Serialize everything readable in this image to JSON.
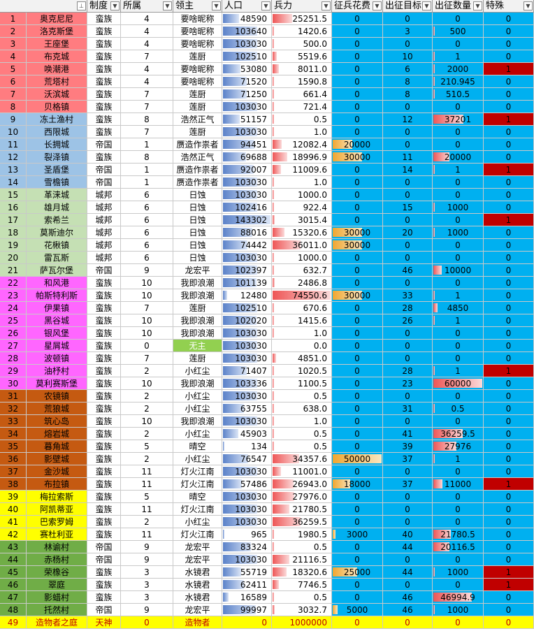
{
  "header": {
    "no": "",
    "system": "制度",
    "belong": "所属",
    "lord": "领主",
    "pop": "人口",
    "troops": "兵力",
    "recruit": "征兵花费",
    "target": "出征目标",
    "count": "出征数量",
    "special": "特殊",
    "sort_icon": "sort-filter-icon",
    "filter_icon": "dropdown-filter-icon"
  },
  "colors": {
    "group1": "#ff7c80",
    "group2": "#9dc3e6",
    "group3": "#c5e0b4",
    "group4": "#ff66ff",
    "group5": "#c55a11",
    "group6": "#ffff00",
    "group7": "#70ad47",
    "special_flag": "#c00000",
    "sky": "#00b0f0"
  },
  "max": {
    "pop": 143302,
    "troops": 74550.6,
    "recruit": 50000,
    "count": 60000
  },
  "rows": [
    {
      "no": "1",
      "name": "奥克尼尼",
      "system": "蛮族",
      "belong": "4",
      "lord": "要啥昵称",
      "pop": "48590",
      "troops": "25251.5",
      "recruit": "0",
      "target": "0",
      "count": "0",
      "special": "0"
    },
    {
      "no": "2",
      "name": "洛克斯堡",
      "system": "蛮族",
      "belong": "4",
      "lord": "要啥昵称",
      "pop": "103640",
      "troops": "1420.6",
      "recruit": "0",
      "target": "3",
      "count": "500",
      "special": "0"
    },
    {
      "no": "3",
      "name": "王座堡",
      "system": "蛮族",
      "belong": "4",
      "lord": "要啥昵称",
      "pop": "103030",
      "troops": "500.0",
      "recruit": "0",
      "target": "0",
      "count": "0",
      "special": "0"
    },
    {
      "no": "4",
      "name": "布克城",
      "system": "蛮族",
      "belong": "7",
      "lord": "莲厨",
      "pop": "102510",
      "troops": "5519.6",
      "recruit": "0",
      "target": "10",
      "count": "1",
      "special": "0"
    },
    {
      "no": "5",
      "name": "唤潮港",
      "system": "蛮族",
      "belong": "4",
      "lord": "要啥昵称",
      "pop": "53080",
      "troops": "8011.0",
      "recruit": "0",
      "target": "6",
      "count": "2000",
      "special": "1"
    },
    {
      "no": "6",
      "name": "荒塔村",
      "system": "蛮族",
      "belong": "4",
      "lord": "要啥昵称",
      "pop": "71520",
      "troops": "1590.8",
      "recruit": "0",
      "target": "8",
      "count": "210.945",
      "special": "0"
    },
    {
      "no": "7",
      "name": "沃滨城",
      "system": "蛮族",
      "belong": "7",
      "lord": "莲厨",
      "pop": "71250",
      "troops": "661.4",
      "recruit": "0",
      "target": "8",
      "count": "510.5",
      "special": "0"
    },
    {
      "no": "8",
      "name": "贝格镇",
      "system": "蛮族",
      "belong": "7",
      "lord": "莲厨",
      "pop": "103030",
      "troops": "721.4",
      "recruit": "0",
      "target": "0",
      "count": "0",
      "special": "0"
    },
    {
      "no": "9",
      "name": "冻土渔村",
      "system": "蛮族",
      "belong": "8",
      "lord": "浩然正气",
      "pop": "51157",
      "troops": "0.5",
      "recruit": "0",
      "target": "12",
      "count": "37201",
      "special": "1"
    },
    {
      "no": "10",
      "name": "西限城",
      "system": "蛮族",
      "belong": "7",
      "lord": "莲厨",
      "pop": "103030",
      "troops": "1.0",
      "recruit": "0",
      "target": "0",
      "count": "0",
      "special": "0"
    },
    {
      "no": "11",
      "name": "长拥城",
      "system": "帝国",
      "belong": "1",
      "lord": "赝造作祟者",
      "pop": "94451",
      "troops": "12082.4",
      "recruit": "20000",
      "target": "0",
      "count": "0",
      "special": "0"
    },
    {
      "no": "12",
      "name": "裂泽镇",
      "system": "蛮族",
      "belong": "8",
      "lord": "浩然正气",
      "pop": "69688",
      "troops": "18996.9",
      "recruit": "30000",
      "target": "11",
      "count": "20000",
      "special": "0"
    },
    {
      "no": "13",
      "name": "圣盾堡",
      "system": "帝国",
      "belong": "1",
      "lord": "赝造作祟者",
      "pop": "92007",
      "troops": "11009.6",
      "recruit": "0",
      "target": "14",
      "count": "1",
      "special": "1"
    },
    {
      "no": "14",
      "name": "雪檐镇",
      "system": "帝国",
      "belong": "1",
      "lord": "赝造作祟者",
      "pop": "103030",
      "troops": "1.0",
      "recruit": "0",
      "target": "0",
      "count": "0",
      "special": "0"
    },
    {
      "no": "15",
      "name": "革涞城",
      "system": "城邦",
      "belong": "6",
      "lord": "日蚀",
      "pop": "103030",
      "troops": "1000.0",
      "recruit": "0",
      "target": "0",
      "count": "0",
      "special": "0"
    },
    {
      "no": "16",
      "name": "雄月城",
      "system": "城邦",
      "belong": "6",
      "lord": "日蚀",
      "pop": "102416",
      "troops": "922.4",
      "recruit": "0",
      "target": "15",
      "count": "1000",
      "special": "0"
    },
    {
      "no": "17",
      "name": "索希兰",
      "system": "城邦",
      "belong": "6",
      "lord": "日蚀",
      "pop": "143302",
      "troops": "3015.4",
      "recruit": "0",
      "target": "0",
      "count": "0",
      "special": "1"
    },
    {
      "no": "18",
      "name": "莫斯迪尔",
      "system": "城邦",
      "belong": "6",
      "lord": "日蚀",
      "pop": "88016",
      "troops": "15320.6",
      "recruit": "30000",
      "target": "20",
      "count": "1000",
      "special": "0"
    },
    {
      "no": "19",
      "name": "花楸镇",
      "system": "城邦",
      "belong": "6",
      "lord": "日蚀",
      "pop": "74442",
      "troops": "36011.0",
      "recruit": "30000",
      "target": "0",
      "count": "0",
      "special": "0"
    },
    {
      "no": "20",
      "name": "雷瓦斯",
      "system": "城邦",
      "belong": "6",
      "lord": "日蚀",
      "pop": "103030",
      "troops": "1000.0",
      "recruit": "0",
      "target": "0",
      "count": "0",
      "special": "0"
    },
    {
      "no": "21",
      "name": "萨瓦尔堡",
      "system": "帝国",
      "belong": "9",
      "lord": "龙宏平",
      "pop": "102397",
      "troops": "632.7",
      "recruit": "0",
      "target": "46",
      "count": "10000",
      "special": "0"
    },
    {
      "no": "22",
      "name": "和风港",
      "system": "蛮族",
      "belong": "10",
      "lord": "我即浪潮",
      "pop": "101139",
      "troops": "2486.8",
      "recruit": "0",
      "target": "0",
      "count": "0",
      "special": "0"
    },
    {
      "no": "23",
      "name": "帕斯特利斯",
      "system": "蛮族",
      "belong": "10",
      "lord": "我即浪潮",
      "pop": "12480",
      "troops": "74550.6",
      "recruit": "30000",
      "target": "33",
      "count": "1",
      "special": "0"
    },
    {
      "no": "24",
      "name": "伊果镇",
      "system": "蛮族",
      "belong": "7",
      "lord": "莲厨",
      "pop": "102510",
      "troops": "670.6",
      "recruit": "0",
      "target": "28",
      "count": "4850",
      "special": "0"
    },
    {
      "no": "25",
      "name": "黑谷城",
      "system": "蛮族",
      "belong": "10",
      "lord": "我即浪潮",
      "pop": "102020",
      "troops": "1415.6",
      "recruit": "0",
      "target": "26",
      "count": "1",
      "special": "0"
    },
    {
      "no": "26",
      "name": "银风堡",
      "system": "蛮族",
      "belong": "10",
      "lord": "我即浪潮",
      "pop": "103030",
      "troops": "1.0",
      "recruit": "0",
      "target": "0",
      "count": "0",
      "special": "0"
    },
    {
      "no": "27",
      "name": "星屑城",
      "system": "蛮族",
      "belong": "0",
      "lord": "无主",
      "pop": "103030",
      "troops": "0.0",
      "recruit": "0",
      "target": "0",
      "count": "0",
      "special": "0"
    },
    {
      "no": "28",
      "name": "波顿镇",
      "system": "蛮族",
      "belong": "7",
      "lord": "莲厨",
      "pop": "103030",
      "troops": "4851.0",
      "recruit": "0",
      "target": "0",
      "count": "0",
      "special": "0"
    },
    {
      "no": "29",
      "name": "油杼村",
      "system": "蛮族",
      "belong": "2",
      "lord": "小红尘",
      "pop": "71407",
      "troops": "1020.5",
      "recruit": "0",
      "target": "28",
      "count": "1",
      "special": "1"
    },
    {
      "no": "30",
      "name": "莫利赛斯堡",
      "system": "蛮族",
      "belong": "10",
      "lord": "我即浪潮",
      "pop": "103336",
      "troops": "1100.5",
      "recruit": "0",
      "target": "23",
      "count": "60000",
      "special": "0"
    },
    {
      "no": "31",
      "name": "农镜镇",
      "system": "蛮族",
      "belong": "2",
      "lord": "小红尘",
      "pop": "103030",
      "troops": "0.5",
      "recruit": "0",
      "target": "0",
      "count": "0",
      "special": "0"
    },
    {
      "no": "32",
      "name": "荒狼城",
      "system": "蛮族",
      "belong": "2",
      "lord": "小红尘",
      "pop": "63755",
      "troops": "638.0",
      "recruit": "0",
      "target": "31",
      "count": "0.5",
      "special": "0"
    },
    {
      "no": "33",
      "name": "筑心岛",
      "system": "蛮族",
      "belong": "10",
      "lord": "我即浪潮",
      "pop": "103030",
      "troops": "1.0",
      "recruit": "0",
      "target": "0",
      "count": "0",
      "special": "0"
    },
    {
      "no": "34",
      "name": "熔岩城",
      "system": "蛮族",
      "belong": "2",
      "lord": "小红尘",
      "pop": "45903",
      "troops": "0.5",
      "recruit": "0",
      "target": "41",
      "count": "36259.5",
      "special": "0"
    },
    {
      "no": "35",
      "name": "暮角城",
      "system": "蛮族",
      "belong": "5",
      "lord": "晴空",
      "pop": "134",
      "troops": "0.5",
      "recruit": "0",
      "target": "39",
      "count": "27976",
      "special": "0"
    },
    {
      "no": "36",
      "name": "影壁城",
      "system": "蛮族",
      "belong": "2",
      "lord": "小红尘",
      "pop": "76547",
      "troops": "34357.6",
      "recruit": "50000",
      "target": "37",
      "count": "1",
      "special": "0"
    },
    {
      "no": "37",
      "name": "金沙城",
      "system": "蛮族",
      "belong": "11",
      "lord": "灯火江南",
      "pop": "103030",
      "troops": "11001.0",
      "recruit": "0",
      "target": "0",
      "count": "0",
      "special": "0"
    },
    {
      "no": "38",
      "name": "布拉镇",
      "system": "蛮族",
      "belong": "11",
      "lord": "灯火江南",
      "pop": "57486",
      "troops": "26943.0",
      "recruit": "18000",
      "target": "37",
      "count": "11000",
      "special": "1"
    },
    {
      "no": "39",
      "name": "梅拉索斯",
      "system": "蛮族",
      "belong": "5",
      "lord": "晴空",
      "pop": "103030",
      "troops": "27976.0",
      "recruit": "0",
      "target": "0",
      "count": "0",
      "special": "0"
    },
    {
      "no": "40",
      "name": "阿凯蒂亚",
      "system": "蛮族",
      "belong": "11",
      "lord": "灯火江南",
      "pop": "103030",
      "troops": "21780.5",
      "recruit": "0",
      "target": "0",
      "count": "0",
      "special": "0"
    },
    {
      "no": "41",
      "name": "巴索罗姆",
      "system": "蛮族",
      "belong": "2",
      "lord": "小红尘",
      "pop": "103030",
      "troops": "36259.5",
      "recruit": "0",
      "target": "0",
      "count": "0",
      "special": "0"
    },
    {
      "no": "42",
      "name": "赛杜利亚",
      "system": "蛮族",
      "belong": "11",
      "lord": "灯火江南",
      "pop": "965",
      "troops": "1980.5",
      "recruit": "3000",
      "target": "40",
      "count": "21780.5",
      "special": "0"
    },
    {
      "no": "43",
      "name": "林谕村",
      "system": "帝国",
      "belong": "9",
      "lord": "龙宏平",
      "pop": "83324",
      "troops": "0.5",
      "recruit": "0",
      "target": "44",
      "count": "20116.5",
      "special": "0"
    },
    {
      "no": "44",
      "name": "赤杨村",
      "system": "帝国",
      "belong": "9",
      "lord": "龙宏平",
      "pop": "103030",
      "troops": "21116.5",
      "recruit": "0",
      "target": "0",
      "count": "0",
      "special": "0"
    },
    {
      "no": "45",
      "name": "荣橡谷",
      "system": "蛮族",
      "belong": "3",
      "lord": "水镜君",
      "pop": "55719",
      "troops": "18320.6",
      "recruit": "25000",
      "target": "44",
      "count": "1000",
      "special": "1"
    },
    {
      "no": "46",
      "name": "翠庭",
      "system": "蛮族",
      "belong": "3",
      "lord": "水镜君",
      "pop": "62411",
      "troops": "7746.5",
      "recruit": "0",
      "target": "0",
      "count": "0",
      "special": "1"
    },
    {
      "no": "47",
      "name": "影蜡村",
      "system": "蛮族",
      "belong": "3",
      "lord": "水镜君",
      "pop": "16589",
      "troops": "0.5",
      "recruit": "0",
      "target": "46",
      "count": "46994.9",
      "special": "0"
    },
    {
      "no": "48",
      "name": "托然村",
      "system": "帝国",
      "belong": "9",
      "lord": "龙宏平",
      "pop": "99997",
      "troops": "3032.7",
      "recruit": "5000",
      "target": "46",
      "count": "1000",
      "special": "0"
    },
    {
      "no": "49",
      "name": "造物者之庭",
      "system": "天神",
      "belong": "0",
      "lord": "造物者",
      "pop": "0",
      "troops": "1000000",
      "recruit": "0",
      "target": "0",
      "count": "0",
      "special": "0"
    }
  ]
}
